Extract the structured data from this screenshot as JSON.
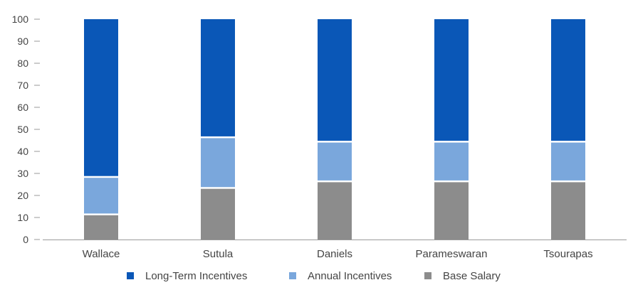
{
  "chart_data": {
    "type": "bar",
    "stacked": true,
    "title": "",
    "xlabel": "",
    "ylabel": "",
    "ylim": [
      0,
      100
    ],
    "yticks": [
      0,
      10,
      20,
      30,
      40,
      50,
      60,
      70,
      80,
      90,
      100
    ],
    "categories": [
      "Wallace",
      "Sutula",
      "Daniels",
      "Parameswaran",
      "Tsourapas"
    ],
    "series": [
      {
        "name": "Base Salary",
        "color": "#8c8c8c",
        "values": [
          11,
          23,
          26,
          26,
          26
        ]
      },
      {
        "name": "Annual Incentives",
        "color": "#7aa7dc",
        "values": [
          17,
          23,
          18,
          18,
          18
        ]
      },
      {
        "name": "Long-Term Incentives",
        "color": "#0a57b7",
        "values": [
          72,
          54,
          56,
          56,
          56
        ]
      }
    ],
    "legend": {
      "position": "bottom",
      "order": [
        "Long-Term Incentives",
        "Annual Incentives",
        "Base Salary"
      ]
    },
    "grid": false,
    "axis_color": "#9a9a9a",
    "text_color": "#444444"
  }
}
